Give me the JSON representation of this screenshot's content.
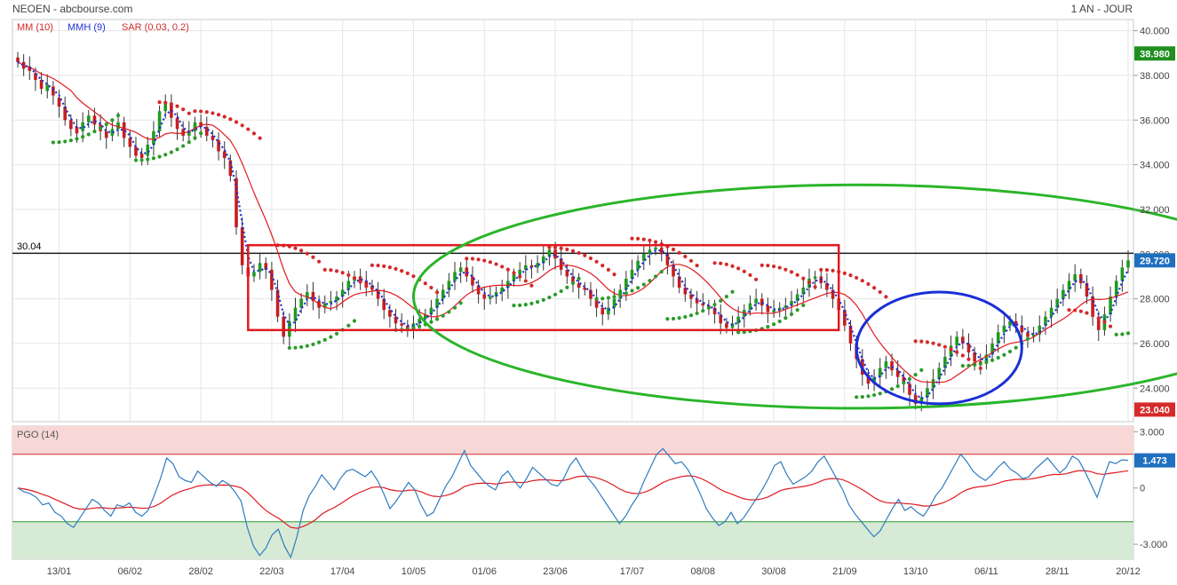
{
  "header": {
    "title": "NEOEN - abcbourse.com",
    "period": "1 AN - JOUR"
  },
  "chart_data": [
    {
      "type": "candlestick",
      "legend": [
        "MM (10)",
        "MMH (9)",
        "SAR (0.03, 0.2)"
      ],
      "ylim": [
        22.5,
        40.5
      ],
      "y_ticks": [
        "40.000",
        "38.000",
        "36.000",
        "34.000",
        "32.000",
        "30.000",
        "28.000",
        "26.000",
        "24.000"
      ],
      "y_tick_values": [
        40,
        38,
        36,
        34,
        32,
        30,
        28,
        26,
        24
      ],
      "x_ticks": [
        "13/01",
        "06/02",
        "28/02",
        "22/03",
        "17/04",
        "10/05",
        "01/06",
        "23/06",
        "17/07",
        "08/08",
        "30/08",
        "21/09",
        "13/10",
        "06/11",
        "28/11",
        "20/12"
      ],
      "price_badges": [
        {
          "label": "38.980",
          "value": 38.98,
          "color": "#1f8f1f"
        },
        {
          "label": "29.720",
          "value": 29.72,
          "color": "#1f6fbf"
        },
        {
          "label": "23.040",
          "value": 23.04,
          "color": "#d42a2a"
        }
      ],
      "horizontal_line": {
        "label": "30.04",
        "value": 30.04
      },
      "close": [
        38.6,
        38.3,
        38.2,
        37.8,
        37.4,
        37.6,
        37.1,
        36.6,
        36.0,
        35.6,
        35.4,
        35.9,
        36.2,
        35.8,
        35.5,
        35.2,
        35.6,
        35.9,
        35.2,
        34.8,
        34.4,
        34.3,
        34.9,
        35.5,
        36.4,
        36.8,
        36.1,
        35.6,
        35.3,
        35.5,
        35.9,
        35.7,
        35.3,
        35.1,
        34.6,
        34.3,
        33.5,
        31.2,
        29.5,
        29.0,
        29.2,
        29.6,
        29.3,
        28.4,
        27.2,
        26.3,
        27.0,
        27.6,
        28.0,
        28.3,
        27.9,
        27.6,
        27.8,
        27.9,
        28.1,
        28.4,
        28.8,
        29.0,
        28.8,
        28.6,
        28.4,
        28.0,
        27.5,
        27.2,
        26.9,
        26.8,
        26.7,
        26.9,
        27.1,
        27.3,
        27.6,
        28.0,
        28.4,
        28.8,
        29.2,
        29.4,
        29.0,
        28.6,
        28.2,
        28.0,
        28.1,
        28.3,
        28.5,
        28.8,
        29.1,
        29.3,
        29.5,
        29.4,
        29.6,
        29.9,
        30.2,
        29.8,
        29.3,
        29.0,
        28.7,
        28.5,
        28.4,
        28.0,
        27.6,
        27.3,
        27.6,
        28.0,
        28.4,
        28.9,
        29.3,
        29.7,
        30.0,
        30.2,
        30.3,
        30.0,
        29.5,
        29.0,
        28.5,
        28.2,
        28.0,
        27.8,
        27.7,
        27.6,
        27.3,
        26.9,
        26.7,
        26.9,
        27.2,
        27.5,
        27.8,
        28.0,
        27.7,
        27.4,
        27.5,
        27.6,
        27.7,
        27.9,
        28.2,
        28.5,
        28.9,
        29.0,
        28.7,
        28.4,
        28.0,
        27.5,
        26.8,
        26.0,
        25.3,
        24.6,
        24.2,
        24.5,
        24.9,
        25.2,
        24.8,
        24.5,
        24.2,
        23.7,
        23.3,
        23.6,
        24.0,
        24.4,
        24.9,
        25.4,
        25.9,
        26.3,
        26.0,
        25.6,
        25.2,
        25.1,
        25.5,
        26.0,
        26.5,
        26.8,
        27.0,
        26.8,
        26.5,
        26.3,
        26.4,
        26.8,
        27.2,
        27.6,
        28.0,
        28.4,
        28.8,
        29.1,
        28.7,
        28.1,
        27.2,
        26.6,
        27.3,
        28.1,
        28.8,
        29.4,
        29.72
      ],
      "open": [
        38.8,
        38.6,
        38.4,
        38.1,
        37.8,
        37.3,
        37.5,
        37.0,
        36.6,
        36.0,
        35.7,
        35.5,
        35.9,
        36.2,
        35.8,
        35.5,
        35.3,
        35.6,
        35.9,
        35.2,
        34.8,
        34.5,
        34.4,
        34.9,
        35.5,
        36.4,
        36.7,
        36.1,
        35.6,
        35.3,
        35.5,
        35.9,
        35.7,
        35.3,
        35.1,
        34.6,
        34.2,
        33.4,
        31.2,
        29.4,
        29.0,
        29.2,
        29.6,
        29.3,
        28.4,
        27.2,
        26.3,
        27.0,
        27.6,
        28.0,
        28.3,
        27.9,
        27.6,
        27.8,
        27.9,
        28.1,
        28.4,
        28.8,
        29.0,
        28.8,
        28.6,
        28.4,
        28.0,
        27.5,
        27.2,
        26.9,
        26.8,
        26.7,
        26.9,
        27.1,
        27.3,
        27.6,
        28.0,
        28.4,
        28.8,
        29.2,
        29.4,
        29.0,
        28.6,
        28.2,
        28.0,
        28.1,
        28.3,
        28.5,
        28.8,
        29.1,
        29.3,
        29.5,
        29.4,
        29.6,
        29.9,
        30.2,
        29.8,
        29.3,
        29.0,
        28.7,
        28.5,
        28.4,
        28.0,
        27.6,
        27.3,
        27.6,
        28.0,
        28.4,
        28.9,
        29.3,
        29.7,
        30.0,
        30.2,
        30.3,
        30.0,
        29.5,
        29.0,
        28.5,
        28.2,
        28.0,
        27.8,
        27.7,
        27.6,
        27.3,
        26.9,
        26.7,
        26.9,
        27.2,
        27.5,
        27.8,
        28.0,
        27.7,
        27.4,
        27.5,
        27.6,
        27.7,
        27.9,
        28.2,
        28.5,
        28.9,
        29.0,
        28.7,
        28.4,
        28.0,
        27.5,
        26.8,
        26.0,
        25.3,
        24.6,
        24.2,
        24.5,
        24.9,
        25.2,
        24.8,
        24.5,
        24.2,
        23.7,
        23.3,
        23.6,
        24.0,
        24.4,
        24.9,
        25.4,
        25.9,
        26.3,
        26.0,
        25.6,
        25.2,
        25.1,
        25.5,
        26.0,
        26.5,
        26.8,
        27.0,
        26.8,
        26.5,
        26.3,
        26.4,
        26.8,
        27.2,
        27.6,
        28.0,
        28.4,
        28.8,
        29.1,
        28.7,
        28.1,
        27.2,
        26.6,
        27.3,
        28.1,
        28.8,
        29.4
      ],
      "sar_high": [
        [
          24,
          36.8
        ],
        [
          30,
          36.4
        ],
        [
          44,
          30.4
        ],
        [
          52,
          29.3
        ],
        [
          60,
          29.5
        ],
        [
          76,
          29.8
        ],
        [
          90,
          30.3
        ],
        [
          104,
          30.7
        ],
        [
          118,
          29.6
        ],
        [
          126,
          29.5
        ],
        [
          136,
          29.3
        ],
        [
          152,
          26.1
        ],
        [
          178,
          27.5
        ]
      ],
      "sar_low": [
        [
          6,
          35.0
        ],
        [
          20,
          34.2
        ],
        [
          46,
          25.8
        ],
        [
          64,
          26.6
        ],
        [
          84,
          27.7
        ],
        [
          98,
          28.0
        ],
        [
          110,
          27.1
        ],
        [
          122,
          26.5
        ],
        [
          142,
          23.6
        ],
        [
          160,
          25.0
        ],
        [
          186,
          26.4
        ]
      ],
      "shapes": [
        {
          "shape": "rectangle",
          "color": "#e0191f",
          "from_index": 39,
          "to_index": 139,
          "from_y": 26.6,
          "to_y": 30.4
        },
        {
          "shape": "ellipse",
          "color": "#2ab52a",
          "cx_index": 142,
          "cy": 28.1,
          "rx_bars": 75,
          "ry_value": 5.0
        },
        {
          "shape": "ellipse",
          "color": "#1a2fd6",
          "cx_index": 156,
          "cy": 25.8,
          "rx_bars": 14,
          "ry_value": 2.5
        }
      ]
    },
    {
      "type": "line",
      "title": "PGO (14)",
      "ylim": [
        -3.8,
        3.3
      ],
      "y_ticks": [
        "3.000",
        "0",
        "-3.000"
      ],
      "y_tick_values": [
        3,
        0,
        -3
      ],
      "upper_band": 1.8,
      "lower_band": -1.8,
      "badge": {
        "label": "1.473",
        "value": 1.473,
        "color": "#1f6fbf"
      },
      "series": [
        {
          "values": [
            0.0,
            -0.2,
            -0.3,
            -0.5,
            -0.9,
            -0.8,
            -1.3,
            -1.5,
            -1.9,
            -2.1,
            -1.6,
            -1.1,
            -0.6,
            -0.8,
            -1.2,
            -1.5,
            -0.9,
            -1.0,
            -0.8,
            -1.3,
            -1.5,
            -1.2,
            -0.4,
            0.5,
            1.6,
            1.3,
            0.6,
            0.4,
            0.3,
            0.9,
            0.6,
            0.3,
            0.1,
            0.4,
            0.2,
            -0.2,
            -0.7,
            -2.1,
            -3.1,
            -3.6,
            -3.2,
            -2.5,
            -2.2,
            -3.1,
            -3.7,
            -2.6,
            -1.2,
            -0.4,
            0.1,
            0.7,
            0.3,
            -0.1,
            0.5,
            0.9,
            1.0,
            0.8,
            0.6,
            0.9,
            0.4,
            -0.3,
            -1.1,
            -0.7,
            -0.2,
            0.3,
            -0.1,
            -0.9,
            -1.5,
            -1.3,
            -0.6,
            0.1,
            0.6,
            1.3,
            2.0,
            1.2,
            0.8,
            0.4,
            0.1,
            -0.1,
            0.6,
            0.9,
            0.4,
            0.0,
            0.5,
            1.1,
            0.8,
            0.5,
            0.2,
            0.1,
            0.5,
            1.2,
            1.6,
            1.0,
            0.5,
            0.1,
            -0.4,
            -0.9,
            -1.4,
            -1.9,
            -1.5,
            -0.9,
            -0.4,
            0.4,
            1.1,
            1.8,
            2.1,
            1.7,
            1.3,
            1.4,
            1.0,
            0.4,
            -0.3,
            -1.1,
            -1.6,
            -2.0,
            -1.8,
            -1.3,
            -1.9,
            -1.6,
            -1.1,
            -0.6,
            -0.1,
            0.5,
            1.2,
            1.4,
            0.7,
            0.2,
            0.4,
            0.6,
            0.9,
            1.4,
            1.7,
            1.1,
            0.5,
            -0.1,
            -0.9,
            -1.4,
            -1.8,
            -2.2,
            -2.6,
            -2.3,
            -1.7,
            -1.1,
            -0.6,
            -1.2,
            -1.0,
            -1.3,
            -1.5,
            -1.0,
            -0.4,
            0.0,
            0.6,
            1.2,
            1.8,
            1.4,
            0.9,
            0.6,
            0.4,
            0.7,
            1.1,
            1.4,
            1.0,
            0.8,
            0.5,
            0.6,
            1.0,
            1.3,
            1.6,
            1.2,
            0.8,
            1.1,
            1.7,
            1.5,
            0.9,
            0.2,
            -0.5,
            0.5,
            1.4,
            1.3,
            1.5,
            1.473
          ]
        },
        {
          "values": [
            0.0,
            -0.05,
            -0.12,
            -0.22,
            -0.35,
            -0.45,
            -0.6,
            -0.75,
            -0.9,
            -1.05,
            -1.12,
            -1.13,
            -1.08,
            -1.05,
            -1.06,
            -1.1,
            -1.07,
            -1.05,
            -1.02,
            -1.05,
            -1.08,
            -1.07,
            -0.98,
            -0.82,
            -0.58,
            -0.37,
            -0.22,
            -0.1,
            -0.01,
            0.1,
            0.15,
            0.17,
            0.15,
            0.16,
            0.15,
            0.1,
            0.01,
            -0.23,
            -0.55,
            -0.9,
            -1.2,
            -1.42,
            -1.6,
            -1.85,
            -2.1,
            -2.15,
            -2.05,
            -1.9,
            -1.69,
            -1.4,
            -1.2,
            -1.05,
            -0.85,
            -0.63,
            -0.42,
            -0.25,
            -0.12,
            0.02,
            0.06,
            0.02,
            -0.09,
            -0.15,
            -0.17,
            -0.12,
            -0.11,
            -0.2,
            -0.34,
            -0.44,
            -0.46,
            -0.4,
            -0.3,
            -0.14,
            0.08,
            0.18,
            0.24,
            0.26,
            0.25,
            0.21,
            0.26,
            0.31,
            0.32,
            0.29,
            0.31,
            0.39,
            0.43,
            0.44,
            0.42,
            0.39,
            0.4,
            0.48,
            0.59,
            0.63,
            0.62,
            0.57,
            0.47,
            0.33,
            0.16,
            -0.05,
            -0.2,
            -0.28,
            -0.3,
            -0.23,
            -0.1,
            0.09,
            0.29,
            0.43,
            0.52,
            0.61,
            0.65,
            0.63,
            0.53,
            0.37,
            0.18,
            -0.03,
            -0.2,
            -0.31,
            -0.45,
            -0.57,
            -0.63,
            -0.63,
            -0.58,
            -0.47,
            -0.3,
            -0.13,
            -0.05,
            0.0,
            0.05,
            0.1,
            0.18,
            0.3,
            0.44,
            0.5,
            0.5,
            0.44,
            0.3,
            0.13,
            -0.06,
            -0.27,
            -0.5,
            -0.68,
            -0.78,
            -0.81,
            -0.79,
            -0.83,
            -0.85,
            -0.9,
            -0.96,
            -0.96,
            -0.9,
            -0.81,
            -0.67,
            -0.49,
            -0.26,
            -0.09,
            0.01,
            0.07,
            0.1,
            0.16,
            0.25,
            0.36,
            0.42,
            0.46,
            0.46,
            0.47,
            0.52,
            0.59,
            0.67,
            0.72,
            0.72,
            0.76,
            0.85,
            0.92,
            0.92,
            0.87,
            0.76,
            0.73,
            0.78,
            0.82,
            0.87,
            0.92
          ]
        }
      ]
    }
  ]
}
